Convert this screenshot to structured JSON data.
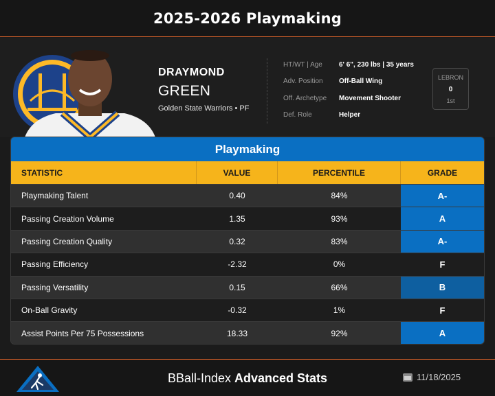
{
  "title": "2025-2026 Playmaking",
  "player": {
    "first_name": "DRAYMOND",
    "last_name": "GREEN",
    "team_position": "Golden State Warriors • PF",
    "logo_icon": "warriors-logo",
    "photo_icon": "player-headshot"
  },
  "info": [
    {
      "label": "HT/WT | Age",
      "value": "6' 6\", 230 lbs | 35 years"
    },
    {
      "label": "Adv. Position",
      "value": "Off-Ball Wing"
    },
    {
      "label": "Off. Archetype",
      "value": "Movement Shooter"
    },
    {
      "label": "Def. Role",
      "value": "Helper"
    }
  ],
  "lebron": {
    "label": "LEBRON",
    "value": "0",
    "rank": "1st"
  },
  "table": {
    "title": "Playmaking",
    "headers": [
      "STATISTIC",
      "VALUE",
      "PERCENTILE",
      "GRADE"
    ],
    "rows": [
      {
        "stat": "Playmaking Talent",
        "value": "0.40",
        "percentile": "84%",
        "grade": "A-"
      },
      {
        "stat": "Passing Creation Volume",
        "value": "1.35",
        "percentile": "93%",
        "grade": "A"
      },
      {
        "stat": "Passing Creation Quality",
        "value": "0.32",
        "percentile": "83%",
        "grade": "A-"
      },
      {
        "stat": "Passing Efficiency",
        "value": "-2.32",
        "percentile": "0%",
        "grade": "F"
      },
      {
        "stat": "Passing Versatility",
        "value": "0.15",
        "percentile": "66%",
        "grade": "B"
      },
      {
        "stat": "On-Ball Gravity",
        "value": "-0.32",
        "percentile": "1%",
        "grade": "F"
      },
      {
        "stat": "Assist Points Per 75 Possessions",
        "value": "18.33",
        "percentile": "92%",
        "grade": "A"
      }
    ]
  },
  "footer": {
    "brand_light": "BBall-Index",
    "brand_bold": "Advanced Stats",
    "date": "11/18/2025",
    "calendar_icon": "calendar-icon",
    "logo_icon": "bball-index-logo"
  },
  "colors": {
    "accent_blue": "#0a6fc2",
    "header_gold": "#f6b41b",
    "divider_orange": "#d9622b"
  }
}
